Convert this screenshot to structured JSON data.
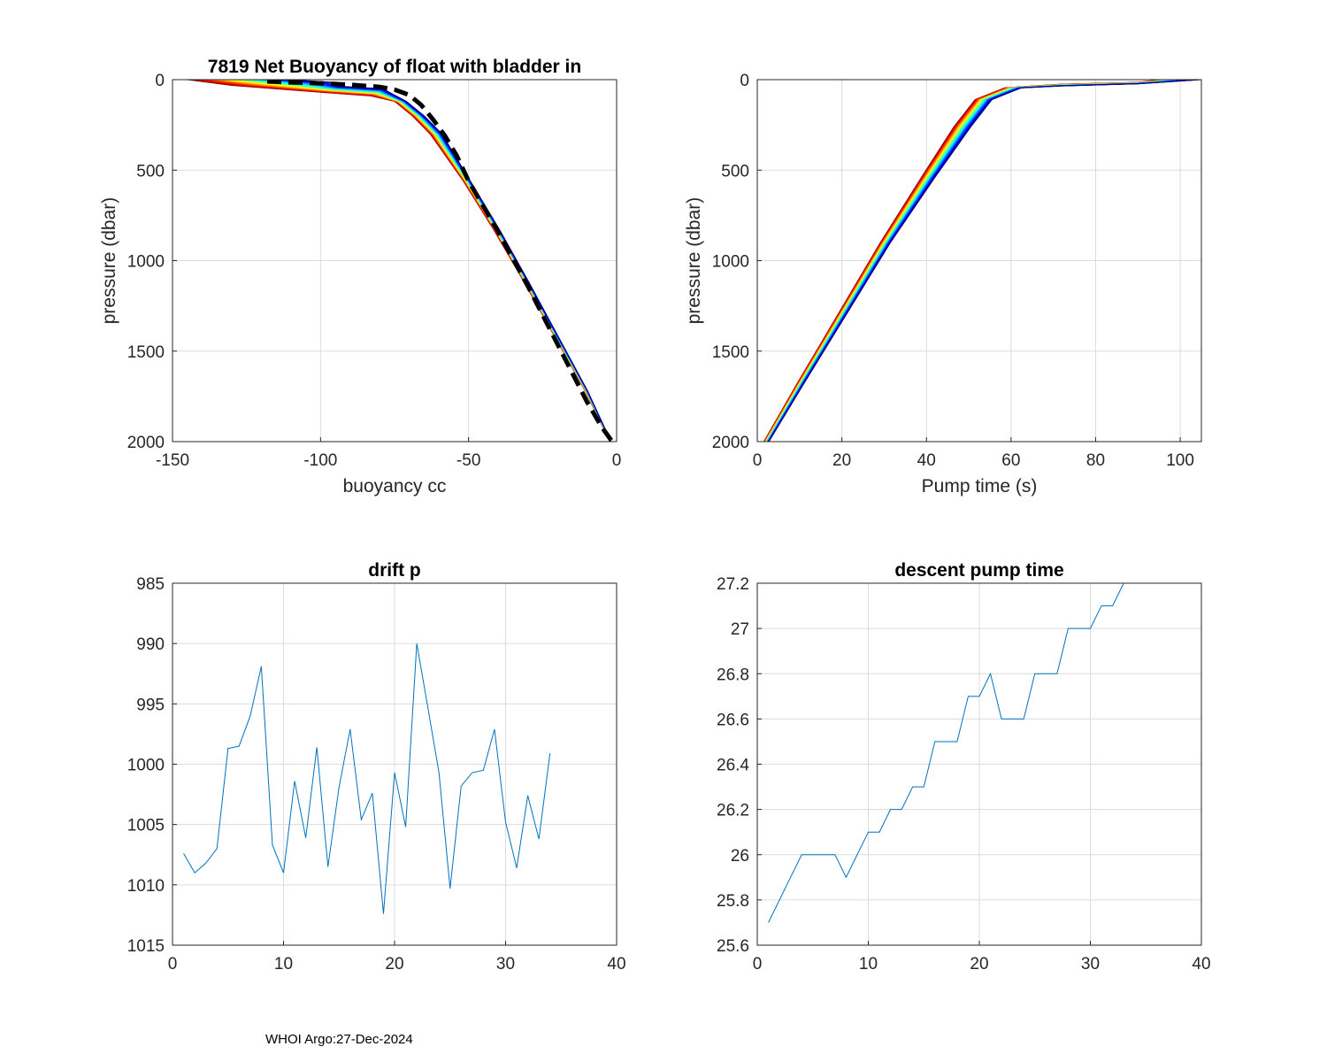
{
  "footer": "WHOI Argo:27-Dec-2024",
  "chart_data": [
    {
      "id": "buoyancy",
      "type": "line",
      "title": "7819 Net Buoyancy of float with bladder in",
      "xlabel": "buoyancy cc",
      "ylabel": "pressure (dbar)",
      "xlim": [
        -150,
        0
      ],
      "ylim": [
        0,
        2000
      ],
      "y_reversed": true,
      "grid": true,
      "xticks": [
        -150,
        -100,
        -50,
        0
      ],
      "yticks": [
        0,
        500,
        1000,
        1500,
        2000
      ],
      "profile_count": 34,
      "colormap": "jet",
      "series": [
        {
          "style": "dashed-black-thick",
          "points": [
            [
              -118,
              10
            ],
            [
              -110,
              15
            ],
            [
              -100,
              20
            ],
            [
              -90,
              28
            ],
            [
              -80,
              40
            ],
            [
              -75,
              55
            ],
            [
              -70,
              85
            ],
            [
              -66,
              140
            ],
            [
              -62,
              220
            ],
            [
              -58,
              310
            ],
            [
              -54,
              420
            ],
            [
              -50,
              560
            ],
            [
              -45,
              700
            ],
            [
              -40,
              840
            ],
            [
              -35,
              990
            ],
            [
              -30,
              1140
            ],
            [
              -25,
              1300
            ],
            [
              -20,
              1460
            ],
            [
              -15,
              1620
            ],
            [
              -10,
              1780
            ],
            [
              -5,
              1920
            ],
            [
              -1.5,
              2000
            ]
          ]
        }
      ]
    },
    {
      "id": "pumptime",
      "type": "line",
      "title": "",
      "xlabel": "Pump time (s)",
      "ylabel": "pressure (dbar)",
      "xlim": [
        0,
        105
      ],
      "ylim": [
        0,
        2000
      ],
      "y_reversed": true,
      "grid": true,
      "xticks": [
        0,
        20,
        40,
        60,
        80,
        100
      ],
      "yticks": [
        0,
        500,
        1000,
        1500,
        2000
      ],
      "profile_count": 34,
      "colormap": "jet",
      "series": []
    },
    {
      "id": "driftp",
      "type": "line",
      "title": "drift p",
      "xlabel": "",
      "ylabel": "",
      "xlim": [
        0,
        40
      ],
      "ylim": [
        985,
        1015
      ],
      "y_reversed": true,
      "grid": true,
      "xticks": [
        0,
        10,
        20,
        30,
        40
      ],
      "yticks": [
        985,
        990,
        995,
        1000,
        1005,
        1010,
        1015
      ],
      "color": "#0072BD",
      "x": [
        1,
        2,
        3,
        4,
        5,
        6,
        7,
        8,
        9,
        10,
        11,
        12,
        13,
        14,
        15,
        16,
        17,
        18,
        19,
        20,
        21,
        22,
        23,
        24,
        25,
        26,
        27,
        28,
        29,
        30,
        31,
        32,
        33,
        34
      ],
      "values": [
        1007.4,
        1009.0,
        1008.2,
        1007.0,
        998.7,
        998.5,
        996.0,
        991.9,
        1006.7,
        1009.0,
        1001.4,
        1006.1,
        998.6,
        1008.5,
        1001.9,
        997.1,
        1004.6,
        1002.4,
        1012.4,
        1000.7,
        1005.2,
        990.0,
        995.3,
        1000.7,
        1010.3,
        1001.8,
        1000.7,
        1000.5,
        997.1,
        1004.8,
        1008.6,
        1002.6,
        1006.2,
        999.1
      ]
    },
    {
      "id": "descent",
      "type": "line",
      "title": "descent pump time",
      "xlabel": "",
      "ylabel": "",
      "xlim": [
        0,
        40
      ],
      "ylim": [
        25.6,
        27.2
      ],
      "y_reversed": false,
      "grid": true,
      "xticks": [
        0,
        10,
        20,
        30,
        40
      ],
      "yticks": [
        25.6,
        25.8,
        26,
        26.2,
        26.4,
        26.6,
        26.8,
        27,
        27.2
      ],
      "yticklabels": [
        "25.6",
        "25.8",
        "26",
        "26.2",
        "26.4",
        "26.6",
        "26.8",
        "27",
        "27.2"
      ],
      "color": "#0072BD",
      "x": [
        1,
        2,
        3,
        4,
        5,
        6,
        7,
        8,
        9,
        10,
        11,
        12,
        13,
        14,
        15,
        16,
        17,
        18,
        19,
        20,
        21,
        22,
        23,
        24,
        25,
        26,
        27,
        28,
        29,
        30,
        31,
        32,
        33,
        34
      ],
      "values": [
        25.7,
        25.8,
        25.9,
        26.0,
        26.0,
        26.0,
        26.0,
        25.9,
        26.0,
        26.1,
        26.1,
        26.2,
        26.2,
        26.3,
        26.3,
        26.5,
        26.5,
        26.5,
        26.7,
        26.7,
        26.8,
        26.6,
        26.6,
        26.6,
        26.8,
        26.8,
        26.8,
        27.0,
        27.0,
        27.0,
        27.1,
        27.1,
        27.2,
        27.2
      ]
    }
  ]
}
